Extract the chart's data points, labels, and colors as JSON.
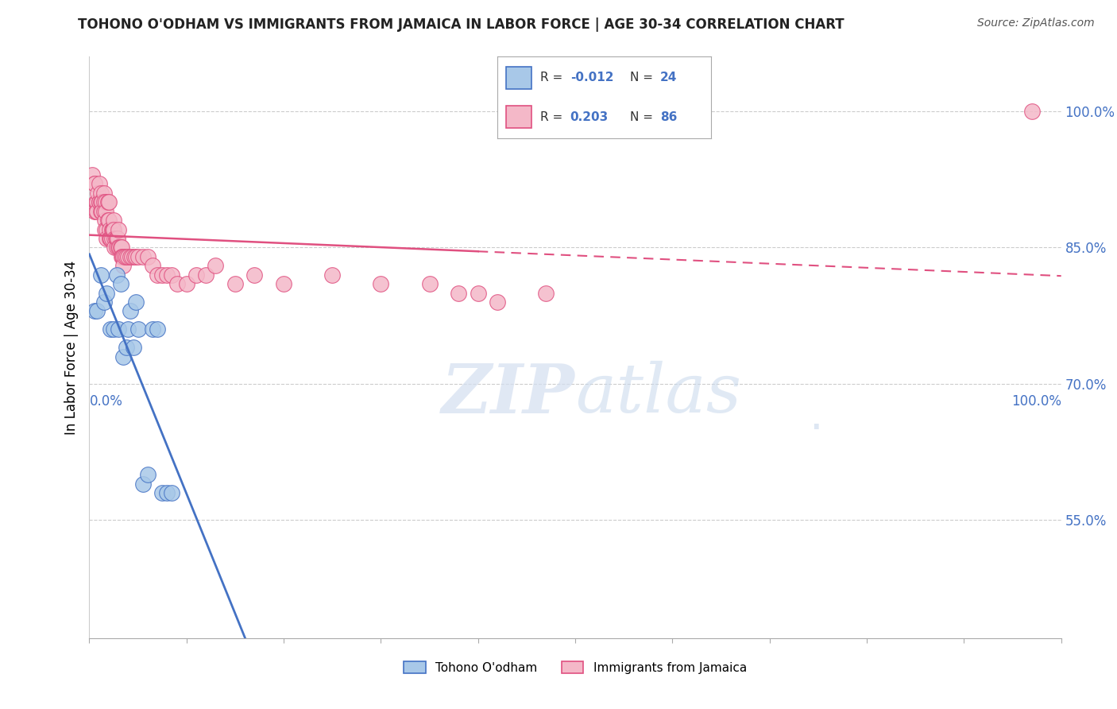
{
  "title": "TOHONO O'ODHAM VS IMMIGRANTS FROM JAMAICA IN LABOR FORCE | AGE 30-34 CORRELATION CHART",
  "source": "Source: ZipAtlas.com",
  "ylabel": "In Labor Force | Age 30-34",
  "xlim": [
    0.0,
    1.0
  ],
  "ylim": [
    0.42,
    1.06
  ],
  "yticks": [
    0.55,
    0.7,
    0.85,
    1.0
  ],
  "ytick_labels": [
    "55.0%",
    "70.0%",
    "85.0%",
    "100.0%"
  ],
  "color_blue": "#a8c8e8",
  "color_pink": "#f4b8c8",
  "color_blue_line": "#4472c4",
  "color_pink_line": "#e05080",
  "watermark_zip": "ZIP",
  "watermark_atlas": "atlas",
  "legend_items": [
    {
      "color_fill": "#a8c8e8",
      "color_edge": "#4472c4",
      "r_text": "R = ",
      "r_val": "-0.012",
      "r_color": "#4472c4",
      "n_text": "N = ",
      "n_val": "24",
      "n_color": "#333333"
    },
    {
      "color_fill": "#f4b8c8",
      "color_edge": "#e05080",
      "r_text": "R =  ",
      "r_val": "0.203",
      "r_color": "#4472c4",
      "n_text": "N = ",
      "n_val": "86",
      "n_color": "#333333"
    }
  ],
  "blue_x": [
    0.005,
    0.008,
    0.012,
    0.015,
    0.018,
    0.022,
    0.025,
    0.028,
    0.03,
    0.032,
    0.035,
    0.038,
    0.04,
    0.042,
    0.045,
    0.048,
    0.05,
    0.055,
    0.06,
    0.065,
    0.07,
    0.075,
    0.08,
    0.085
  ],
  "blue_y": [
    0.78,
    0.78,
    0.82,
    0.79,
    0.8,
    0.76,
    0.76,
    0.82,
    0.76,
    0.81,
    0.73,
    0.74,
    0.76,
    0.78,
    0.74,
    0.79,
    0.76,
    0.59,
    0.6,
    0.76,
    0.76,
    0.58,
    0.58,
    0.58
  ],
  "pink_x": [
    0.003,
    0.005,
    0.005,
    0.005,
    0.007,
    0.007,
    0.008,
    0.008,
    0.009,
    0.01,
    0.01,
    0.01,
    0.012,
    0.012,
    0.012,
    0.013,
    0.013,
    0.015,
    0.015,
    0.015,
    0.016,
    0.016,
    0.017,
    0.017,
    0.018,
    0.018,
    0.019,
    0.019,
    0.02,
    0.02,
    0.021,
    0.021,
    0.022,
    0.022,
    0.023,
    0.023,
    0.024,
    0.024,
    0.025,
    0.025,
    0.026,
    0.026,
    0.027,
    0.028,
    0.028,
    0.029,
    0.03,
    0.03,
    0.031,
    0.032,
    0.033,
    0.033,
    0.034,
    0.035,
    0.035,
    0.036,
    0.038,
    0.04,
    0.042,
    0.044,
    0.046,
    0.048,
    0.05,
    0.055,
    0.06,
    0.065,
    0.07,
    0.075,
    0.08,
    0.085,
    0.09,
    0.1,
    0.11,
    0.12,
    0.13,
    0.15,
    0.17,
    0.2,
    0.25,
    0.3,
    0.35,
    0.38,
    0.4,
    0.42,
    0.47,
    0.97
  ],
  "pink_y": [
    0.93,
    0.92,
    0.92,
    0.89,
    0.9,
    0.89,
    0.9,
    0.89,
    0.91,
    0.92,
    0.9,
    0.9,
    0.91,
    0.9,
    0.89,
    0.9,
    0.89,
    0.91,
    0.9,
    0.89,
    0.88,
    0.87,
    0.9,
    0.89,
    0.87,
    0.86,
    0.9,
    0.88,
    0.9,
    0.88,
    0.87,
    0.86,
    0.86,
    0.86,
    0.87,
    0.86,
    0.87,
    0.87,
    0.88,
    0.87,
    0.86,
    0.85,
    0.86,
    0.86,
    0.85,
    0.86,
    0.87,
    0.85,
    0.85,
    0.85,
    0.85,
    0.84,
    0.84,
    0.84,
    0.83,
    0.84,
    0.84,
    0.84,
    0.84,
    0.84,
    0.84,
    0.84,
    0.84,
    0.84,
    0.84,
    0.83,
    0.82,
    0.82,
    0.82,
    0.82,
    0.81,
    0.81,
    0.82,
    0.82,
    0.83,
    0.81,
    0.82,
    0.81,
    0.82,
    0.81,
    0.81,
    0.8,
    0.8,
    0.79,
    0.8,
    1.0
  ]
}
